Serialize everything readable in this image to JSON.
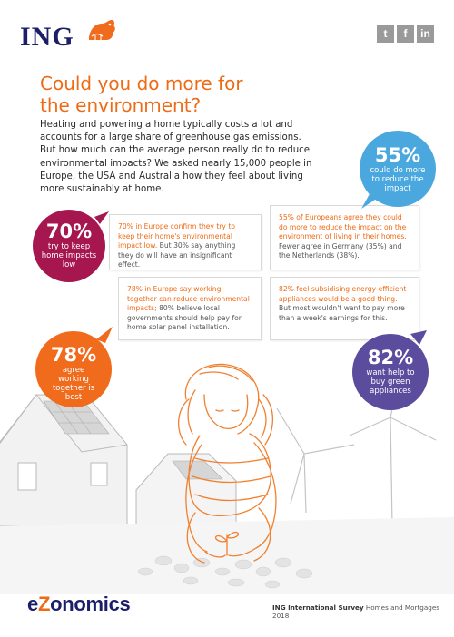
{
  "header": {
    "brand": "ING",
    "social": [
      {
        "icon": "twitter-icon",
        "glyph": "t"
      },
      {
        "icon": "facebook-icon",
        "glyph": "f"
      },
      {
        "icon": "linkedin-icon",
        "glyph": "in"
      }
    ]
  },
  "headline": "Could you do more for the environment?",
  "intro": "Heating and powering a home typically costs a lot and accounts for a large share of greenhouse gas emissions. But how much can the average person really do to reduce environmental impacts? We asked nearly 15,000 people in Europe, the USA and Australia how they feel about living more sustainably at home.",
  "stats": {
    "s55": {
      "value": "55%",
      "label": "could do more to reduce the impact"
    },
    "s70": {
      "value": "70%",
      "label": "try to keep home impacts low"
    },
    "s78": {
      "value": "78%",
      "label": "agree working together is best"
    },
    "s82": {
      "value": "82%",
      "label": "want help to buy green appliances"
    }
  },
  "cards": {
    "c70": {
      "highlight": "70% in Europe confirm they try to keep their home's environmental impact low.",
      "text": "But 30% say anything they do will have an insignificant effect."
    },
    "c55": {
      "highlight": "55% of Europeans agree they could do more to reduce the impact on the environment of living in their homes.",
      "text": "Fewer agree in Germany (35%) and the Netherlands (38%)."
    },
    "c78": {
      "highlight": "78% in Europe say working together can reduce environmental impacts;",
      "text": "80% believe local governments should help pay for home solar panel installation."
    },
    "c82": {
      "highlight": "82% feel subsidising energy-efficient appliances would be a good thing.",
      "text": "But most wouldn't want to pay more than a week's earnings for this."
    }
  },
  "footer": {
    "brand_e": "e",
    "brand_z": "Z",
    "brand_rest": "onomics",
    "survey_bold": "ING International Survey",
    "survey_rest": "Homes and Mortgages 2018"
  },
  "colors": {
    "orange": "#ef6a14",
    "navy": "#1b1f6a",
    "blue": "#4aa8df",
    "magenta": "#a6174f",
    "purple": "#5b4c9e"
  }
}
